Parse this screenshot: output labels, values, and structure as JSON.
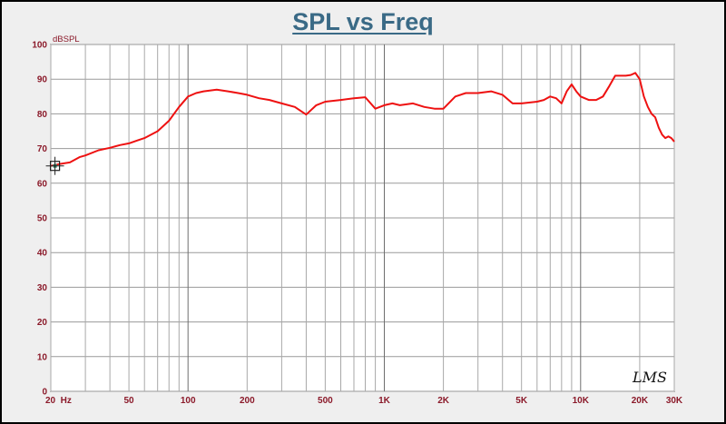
{
  "chart_data": {
    "type": "line",
    "title": "SPL vs Freq",
    "ylabel": "dBSPL",
    "xlabel": "",
    "xscale": "log",
    "xlim": [
      20,
      30000
    ],
    "ylim": [
      0,
      100
    ],
    "grid": true,
    "yticks": [
      "0",
      "10",
      "20",
      "30",
      "40",
      "50",
      "60",
      "70",
      "80",
      "90",
      "100"
    ],
    "xticks": [
      {
        "value": 20,
        "label": "20  Hz"
      },
      {
        "value": 50,
        "label": "50"
      },
      {
        "value": 100,
        "label": "100"
      },
      {
        "value": 200,
        "label": "200"
      },
      {
        "value": 500,
        "label": "500"
      },
      {
        "value": 1000,
        "label": "1K"
      },
      {
        "value": 2000,
        "label": "2K"
      },
      {
        "value": 5000,
        "label": "5K"
      },
      {
        "value": 10000,
        "label": "10K"
      },
      {
        "value": 20000,
        "label": "20K"
      },
      {
        "value": 30000,
        "label": "30K"
      }
    ],
    "series": [
      {
        "color": "#ee1111",
        "x": [
          20,
          22,
          25,
          28,
          30,
          35,
          40,
          45,
          50,
          55,
          60,
          70,
          80,
          90,
          100,
          110,
          120,
          140,
          160,
          180,
          200,
          230,
          260,
          300,
          350,
          400,
          450,
          500,
          600,
          700,
          800,
          900,
          1000,
          1100,
          1200,
          1400,
          1600,
          1800,
          2000,
          2300,
          2600,
          3000,
          3500,
          4000,
          4500,
          5000,
          6000,
          6500,
          7000,
          7500,
          8000,
          8500,
          9000,
          9500,
          10000,
          11000,
          12000,
          13000,
          14000,
          15000,
          16000,
          17000,
          18000,
          19000,
          20000,
          21000,
          22000,
          23000,
          24000,
          25000,
          26000,
          27000,
          28000,
          29000,
          30000
        ],
        "y": [
          65,
          65.5,
          66,
          67.5,
          68,
          69.5,
          70.2,
          71,
          71.5,
          72.3,
          73,
          75,
          78,
          82,
          85,
          86,
          86.5,
          87,
          86.5,
          86,
          85.5,
          84.5,
          84,
          83,
          82,
          79.8,
          82.5,
          83.5,
          84,
          84.5,
          84.8,
          81.5,
          82.5,
          83,
          82.5,
          83,
          82,
          81.5,
          81.5,
          85,
          86,
          86,
          86.5,
          85.5,
          83,
          83,
          83.5,
          84,
          85,
          84.5,
          83,
          86.5,
          88.5,
          86.5,
          85,
          84,
          84,
          85,
          88,
          91,
          91,
          91,
          91.2,
          91.8,
          90,
          85,
          82,
          80,
          79,
          76,
          74,
          73,
          73.5,
          73,
          72
        ]
      }
    ],
    "cursor_marker": {
      "x": 21,
      "y": 65
    }
  },
  "watermark": "LMS"
}
